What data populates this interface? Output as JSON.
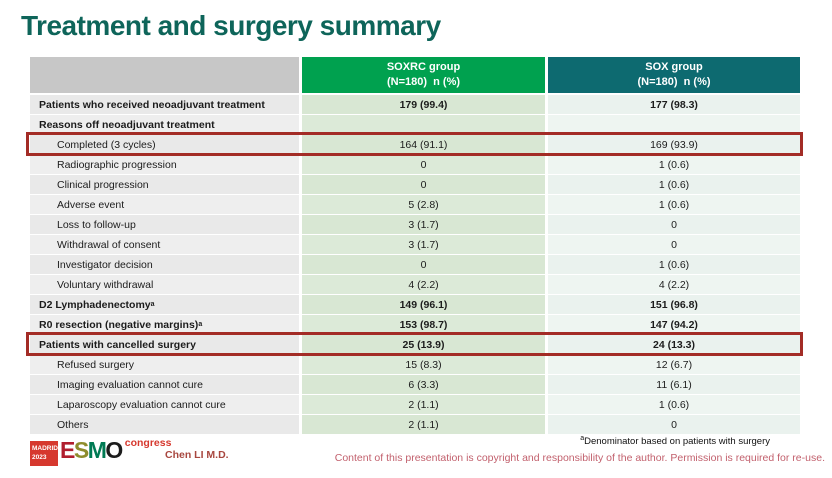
{
  "slide": {
    "title": "Treatment and surgery summary"
  },
  "table": {
    "columns": [
      {
        "label": ""
      },
      {
        "label": "SOXRC group",
        "sublabel": "(N=180)  n (%)"
      },
      {
        "label": "SOX group",
        "sublabel": "(N=180)  n (%)"
      }
    ],
    "rows": [
      {
        "label": "Patients who received neoadjuvant treatment",
        "bold": true,
        "indent": false,
        "soxrc": "179 (99.4)",
        "sox": "177 (98.3)",
        "highlight": false
      },
      {
        "label": "Reasons off neoadjuvant treatment",
        "bold": true,
        "indent": false,
        "soxrc": "",
        "sox": "",
        "highlight": false
      },
      {
        "label": "Completed (3 cycles)",
        "bold": false,
        "indent": true,
        "soxrc": "164 (91.1)",
        "sox": "169 (93.9)",
        "highlight": true
      },
      {
        "label": "Radiographic progression",
        "bold": false,
        "indent": true,
        "soxrc": "0",
        "sox": "1 (0.6)",
        "highlight": false
      },
      {
        "label": "Clinical progression",
        "bold": false,
        "indent": true,
        "soxrc": "0",
        "sox": "1 (0.6)",
        "highlight": false
      },
      {
        "label": "Adverse event",
        "bold": false,
        "indent": true,
        "soxrc": "5 (2.8)",
        "sox": "1 (0.6)",
        "highlight": false
      },
      {
        "label": "Loss to follow-up",
        "bold": false,
        "indent": true,
        "soxrc": "3 (1.7)",
        "sox": "0",
        "highlight": false
      },
      {
        "label": "Withdrawal of consent",
        "bold": false,
        "indent": true,
        "soxrc": "3 (1.7)",
        "sox": "0",
        "highlight": false
      },
      {
        "label": "Investigator decision",
        "bold": false,
        "indent": true,
        "soxrc": "0",
        "sox": "1 (0.6)",
        "highlight": false
      },
      {
        "label": "Voluntary withdrawal",
        "bold": false,
        "indent": true,
        "soxrc": "4 (2.2)",
        "sox": "4 (2.2)",
        "highlight": false
      },
      {
        "label": "D2 Lymphadenectomy",
        "sup": "a",
        "bold": true,
        "indent": false,
        "soxrc": "149 (96.1)",
        "sox": "151 (96.8)",
        "highlight": false
      },
      {
        "label": "R0 resection (negative margins)",
        "sup": "a",
        "bold": true,
        "indent": false,
        "soxrc": "153 (98.7)",
        "sox": "147 (94.2)",
        "highlight": false
      },
      {
        "label": "Patients with cancelled surgery",
        "bold": true,
        "indent": false,
        "soxrc": "25 (13.9)",
        "sox": "24 (13.3)",
        "highlight": true
      },
      {
        "label": "Refused surgery",
        "bold": false,
        "indent": true,
        "soxrc": "15 (8.3)",
        "sox": "12 (6.7)",
        "highlight": false
      },
      {
        "label": "Imaging evaluation cannot cure",
        "bold": false,
        "indent": true,
        "soxrc": "6 (3.3)",
        "sox": "11 (6.1)",
        "highlight": false
      },
      {
        "label": "Laparoscopy evaluation cannot cure",
        "bold": false,
        "indent": true,
        "soxrc": "2 (1.1)",
        "sox": "1 (0.6)",
        "highlight": false
      },
      {
        "label": "Others",
        "bold": false,
        "indent": true,
        "soxrc": "2 (1.1)",
        "sox": "0",
        "highlight": false
      }
    ]
  },
  "footnote": {
    "sup": "a",
    "text": "Denominator based on patients with surgery"
  },
  "footer": {
    "author": "Chen LI M.D.",
    "copyright": "Content of this presentation is copyright and responsibility of the author.  Permission is required for re-use.",
    "logo": {
      "madrid": "MADRID",
      "year": "2023",
      "letters": [
        "E",
        "S",
        "M",
        "O"
      ],
      "congress": "congress"
    }
  },
  "colors": {
    "title": "#0e655a",
    "header_soxrc_bg": "#00a14f",
    "header_sox_bg": "#0d6a70",
    "highlight_border": "#a32c26",
    "copyright_text": "#c2606d"
  }
}
